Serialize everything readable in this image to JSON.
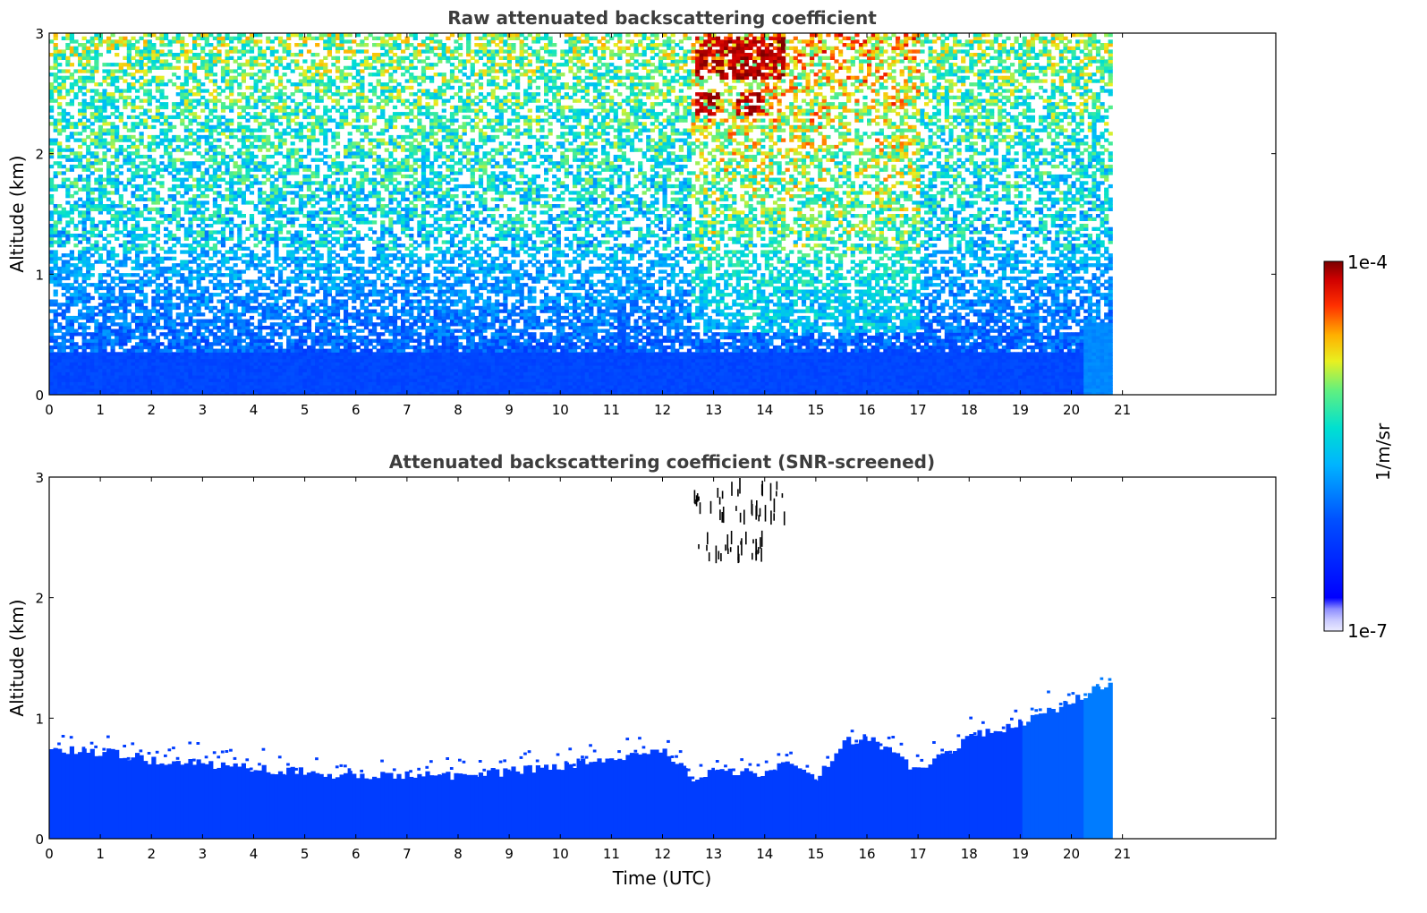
{
  "chart_data": [
    {
      "type": "heatmap",
      "title": "Raw attenuated backscattering coefficient",
      "xlabel": "",
      "ylabel": "Altitude (km)",
      "x_ticks": [
        0,
        1,
        2,
        3,
        4,
        5,
        6,
        7,
        8,
        9,
        10,
        11,
        12,
        13,
        14,
        15,
        16,
        17,
        18,
        19,
        20,
        21
      ],
      "y_ticks": [
        0,
        1,
        2,
        3
      ],
      "xlim": [
        0,
        24
      ],
      "ylim": [
        0,
        3
      ],
      "data_extent_x": [
        0,
        20.8
      ],
      "grid": false,
      "description_of_field": [
        {
          "time_range": [
            0,
            20.8
          ],
          "altitude_range": [
            0,
            0.4
          ],
          "level": "high-blue",
          "log10_value": -6.2
        },
        {
          "time_range": [
            0,
            20.8
          ],
          "altitude_range": [
            0.4,
            1.2
          ],
          "level": "blue-noisy",
          "log10_value": -6.3
        },
        {
          "time_range": [
            0,
            20.8
          ],
          "altitude_range": [
            1.2,
            3.0
          ],
          "level": "cyan-green-noise",
          "log10_value": -5.5
        },
        {
          "time_range": [
            12.6,
            14.4
          ],
          "altitude_range": [
            2.3,
            2.95
          ],
          "level": "cloud",
          "log10_value": -4.1
        },
        {
          "time_range": [
            20.2,
            20.8
          ],
          "altitude_range": [
            0,
            0.6
          ],
          "level": "light-blue",
          "log10_value": -5.9
        }
      ]
    },
    {
      "type": "heatmap",
      "title": "Attenuated backscattering coefficient (SNR-screened)",
      "xlabel": "Time (UTC)",
      "ylabel": "Altitude (km)",
      "x_ticks": [
        0,
        1,
        2,
        3,
        4,
        5,
        6,
        7,
        8,
        9,
        10,
        11,
        12,
        13,
        14,
        15,
        16,
        17,
        18,
        19,
        20,
        21
      ],
      "y_ticks": [
        0,
        1,
        2,
        3
      ],
      "xlim": [
        0,
        24
      ],
      "ylim": [
        0,
        3
      ],
      "data_extent_x": [
        0,
        20.8
      ],
      "grid": false,
      "boundary_layer_top_km": [
        [
          0,
          0.75
        ],
        [
          1,
          0.72
        ],
        [
          2,
          0.65
        ],
        [
          3,
          0.62
        ],
        [
          4,
          0.58
        ],
        [
          5,
          0.55
        ],
        [
          6,
          0.52
        ],
        [
          7,
          0.52
        ],
        [
          8,
          0.53
        ],
        [
          9,
          0.56
        ],
        [
          10,
          0.6
        ],
        [
          11,
          0.68
        ],
        [
          12,
          0.72
        ],
        [
          12.6,
          0.5
        ],
        [
          13,
          0.55
        ],
        [
          14,
          0.55
        ],
        [
          14.5,
          0.65
        ],
        [
          15,
          0.5
        ],
        [
          15.5,
          0.8
        ],
        [
          16,
          0.85
        ],
        [
          16.5,
          0.7
        ],
        [
          17,
          0.55
        ],
        [
          17.5,
          0.72
        ],
        [
          18,
          0.85
        ],
        [
          18.5,
          0.9
        ],
        [
          19,
          0.95
        ],
        [
          19.5,
          1.05
        ],
        [
          20,
          1.15
        ],
        [
          20.5,
          1.25
        ],
        [
          20.8,
          1.28
        ]
      ]
    }
  ],
  "colorbar": {
    "label": "1/m/sr",
    "max_label": "1e-4",
    "min_label": "1e-7",
    "scale": "log",
    "range": [
      1e-07,
      0.0001
    ],
    "colormap": "jet-like with white/light-blue bottom"
  }
}
